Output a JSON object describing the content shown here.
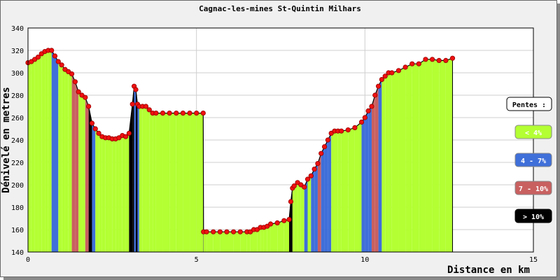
{
  "chart_data": {
    "type": "area",
    "title": "Cagnac-les-mines St-Quintin Milhars",
    "xlabel": "Distance en km",
    "ylabel": "Dénivelé en metres",
    "xlim": [
      0,
      15
    ],
    "ylim": [
      140,
      340
    ],
    "xticks": [
      0,
      5,
      10,
      15
    ],
    "yticks": [
      140,
      160,
      180,
      200,
      220,
      240,
      260,
      280,
      300,
      320,
      340
    ],
    "grid": true,
    "legend": {
      "title": "Pentes :",
      "placement": "right",
      "entries": [
        {
          "label": "< 4%",
          "color": "#b3ff33",
          "text_color": "#ffffff"
        },
        {
          "label": "4 - 7%",
          "color": "#3f6fd9",
          "text_color": "#ffffff"
        },
        {
          "label": "7 - 10%",
          "color": "#c96060",
          "text_color": "#ffffff"
        },
        {
          "label": "> 10%",
          "color": "#000000",
          "text_color": "#ffffff"
        }
      ]
    },
    "colors": {
      "fill": "#b3ff33",
      "marker": "#ee1111",
      "marker_edge": "#990000",
      "line": "#000000"
    },
    "x": [
      0,
      0.1,
      0.2,
      0.3,
      0.4,
      0.5,
      0.6,
      0.7,
      0.8,
      0.9,
      1.0,
      1.1,
      1.2,
      1.3,
      1.4,
      1.5,
      1.6,
      1.7,
      1.8,
      1.9,
      2.0,
      2.1,
      2.2,
      2.3,
      2.4,
      2.5,
      2.6,
      2.7,
      2.8,
      2.9,
      3.0,
      3.1,
      3.15,
      3.2,
      3.25,
      3.3,
      3.4,
      3.5,
      3.6,
      3.7,
      3.8,
      4.0,
      4.2,
      4.4,
      4.6,
      4.8,
      5.0,
      5.2,
      5.21,
      5.3,
      5.5,
      5.7,
      5.9,
      6.1,
      6.3,
      6.5,
      6.6,
      6.7,
      6.8,
      6.9,
      7.0,
      7.1,
      7.2,
      7.4,
      7.6,
      7.75,
      7.8,
      7.85,
      7.9,
      8.0,
      8.1,
      8.2,
      8.3,
      8.4,
      8.5,
      8.6,
      8.7,
      8.8,
      8.9,
      9.0,
      9.1,
      9.2,
      9.3,
      9.5,
      9.7,
      9.9,
      10.0,
      10.1,
      10.2,
      10.3,
      10.4,
      10.5,
      10.6,
      10.7,
      10.8,
      11.0,
      11.2,
      11.4,
      11.6,
      11.8,
      12.0,
      12.2,
      12.4,
      12.6
    ],
    "y": [
      309,
      310,
      312,
      314,
      317,
      319,
      320,
      320,
      315,
      310,
      307,
      303,
      301,
      299,
      292,
      283,
      280,
      278,
      270,
      255,
      250,
      246,
      243,
      242,
      242,
      241,
      241,
      242,
      244,
      243,
      246,
      272,
      288,
      285,
      272,
      270,
      270,
      270,
      267,
      264,
      264,
      264,
      264,
      264,
      264,
      264,
      264,
      264,
      158,
      158,
      158,
      158,
      158,
      158,
      158,
      158,
      158,
      160,
      160,
      162,
      162,
      163,
      165,
      166,
      168,
      169,
      185,
      197,
      199,
      202,
      200,
      198,
      205,
      208,
      214,
      219,
      228,
      234,
      240,
      246,
      248,
      248,
      248,
      249,
      251,
      256,
      260,
      266,
      270,
      280,
      288,
      294,
      297,
      300,
      300,
      302,
      305,
      308,
      308,
      312,
      312,
      311,
      311,
      313
    ]
  }
}
